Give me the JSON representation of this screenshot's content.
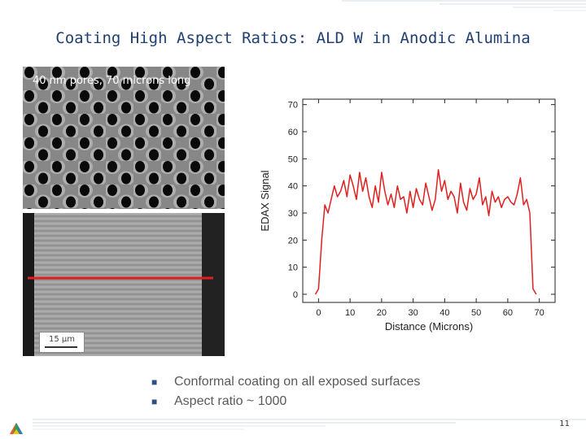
{
  "slide": {
    "title": "Coating High Aspect Ratios: ALD W in Anodic Alumina",
    "image_caption": "40 nm pores, 70 microns long",
    "scale_bar_label": "15 μm",
    "bullets": [
      "Conformal coating on all exposed surfaces",
      "Aspect ratio ~ 1000"
    ],
    "page_number": "11"
  },
  "colors": {
    "title": "#1f3f72",
    "accent_line": "#e02020",
    "bullet_marker": "#2e4f85"
  },
  "chart_data": {
    "type": "line",
    "xlabel": "Distance (Microns)",
    "ylabel": "EDAX Signal",
    "xlim": [
      -5,
      75
    ],
    "ylim": [
      -3,
      72
    ],
    "xticks": [
      0,
      10,
      20,
      30,
      40,
      50,
      60,
      70
    ],
    "yticks": [
      0,
      10,
      20,
      30,
      40,
      50,
      60,
      70
    ],
    "grid": false,
    "series": [
      {
        "color": "#e02020",
        "x": [
          -1,
          0,
          1,
          2,
          3,
          4,
          5,
          6,
          7,
          8,
          9,
          10,
          11,
          12,
          13,
          14,
          15,
          16,
          17,
          18,
          19,
          20,
          21,
          22,
          23,
          24,
          25,
          26,
          27,
          28,
          29,
          30,
          31,
          32,
          33,
          34,
          35,
          36,
          37,
          38,
          39,
          40,
          41,
          42,
          43,
          44,
          45,
          46,
          47,
          48,
          49,
          50,
          51,
          52,
          53,
          54,
          55,
          56,
          57,
          58,
          59,
          60,
          61,
          62,
          63,
          64,
          65,
          66,
          67,
          68,
          69
        ],
        "values": [
          0,
          2,
          20,
          33,
          30,
          35,
          40,
          36,
          38,
          42,
          36,
          44,
          40,
          35,
          45,
          38,
          43,
          36,
          32,
          40,
          34,
          45,
          38,
          33,
          37,
          32,
          40,
          35,
          36,
          30,
          38,
          32,
          39,
          35,
          33,
          41,
          36,
          31,
          35,
          46,
          38,
          42,
          35,
          38,
          36,
          30,
          41,
          34,
          31,
          39,
          35,
          37,
          43,
          33,
          36,
          29,
          38,
          34,
          36,
          32,
          35,
          36,
          34,
          33,
          37,
          43,
          33,
          35,
          30,
          2,
          0
        ]
      }
    ]
  }
}
